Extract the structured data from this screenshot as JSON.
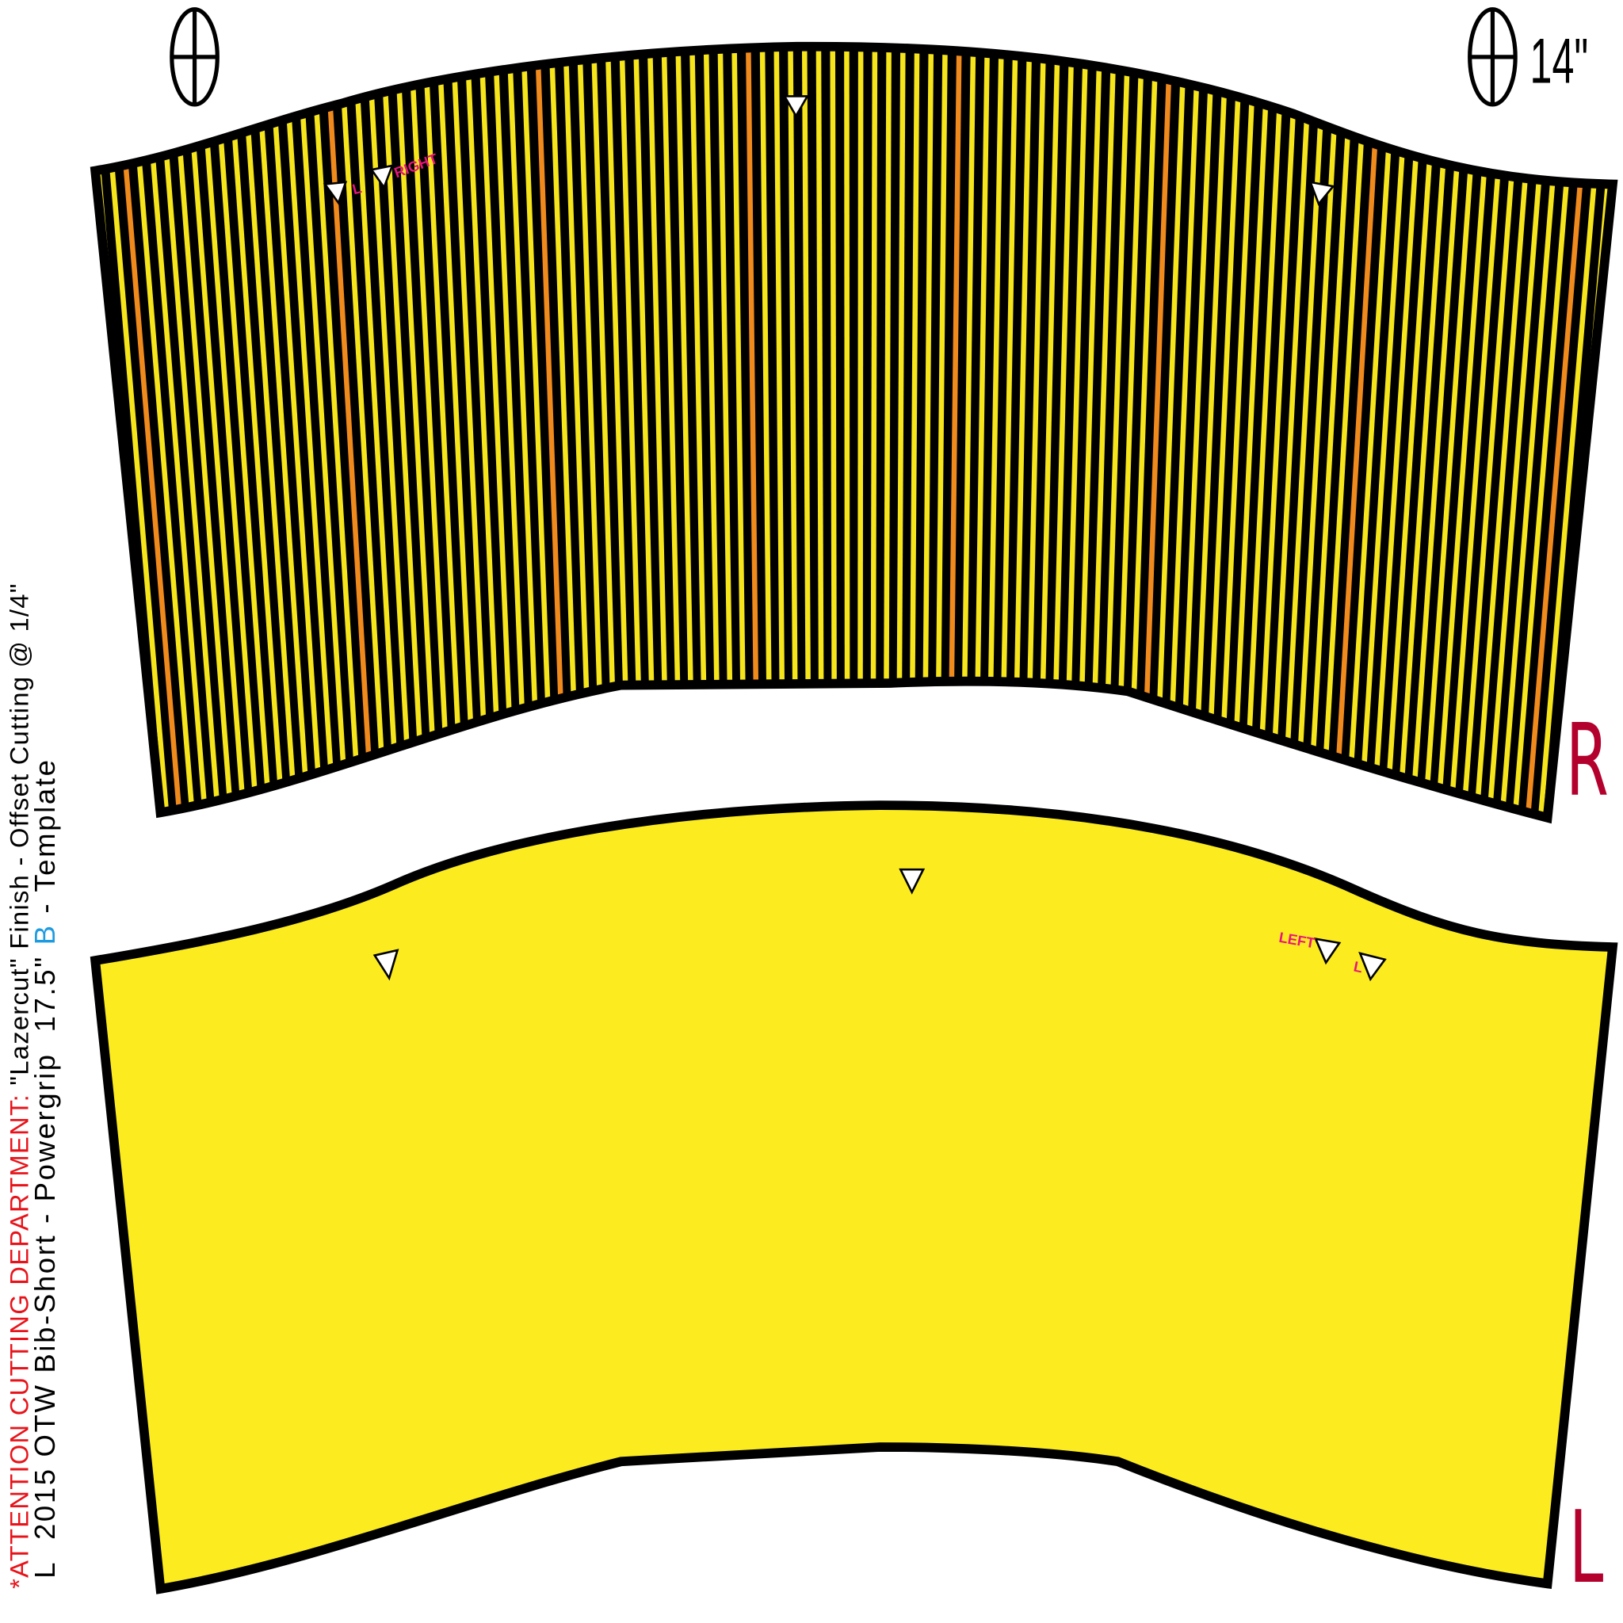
{
  "side_note": {
    "attention": "*ATTENTION CUTTING DEPARTMENT:",
    "instruction": "\"Lazercut\"  Finish - Offset Cutting @ 1/4\""
  },
  "template_line": {
    "size": "L",
    "model": "2015 OTW Bib-Short - Powergrip",
    "length": "17.5\"",
    "version": "B",
    "suffix": "- Template"
  },
  "measure": "14\"",
  "pieces": [
    {
      "label": "R",
      "notch_labels": [
        "L",
        "RIGHT"
      ]
    },
    {
      "label": "L",
      "notch_labels": [
        "LEFT",
        "L"
      ]
    }
  ]
}
